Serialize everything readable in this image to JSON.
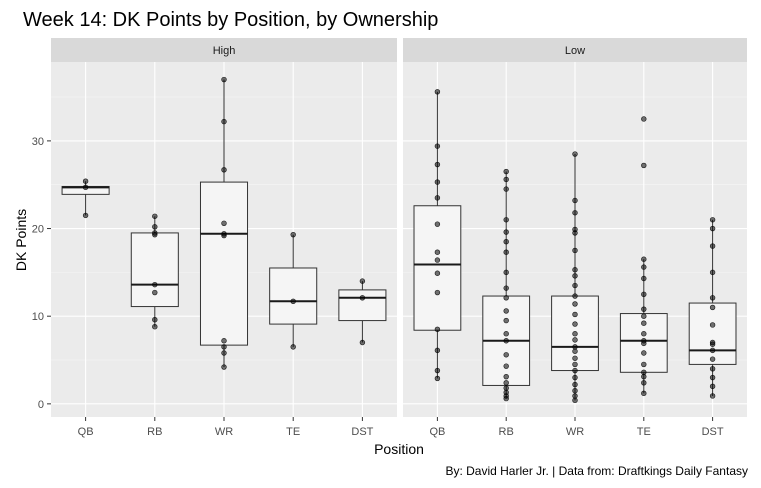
{
  "chart_data": {
    "type": "box",
    "title": "Week 14: DK Points by Position, by Ownership",
    "xlabel": "Position",
    "ylabel": "DK Points",
    "caption": "By: David Harler Jr. | Data from: Draftkings Daily Fantasy",
    "categories": [
      "QB",
      "RB",
      "WR",
      "TE",
      "DST"
    ],
    "ylim": [
      -1.5,
      39
    ],
    "yticks": [
      0,
      10,
      20,
      30
    ],
    "grid": true,
    "panels": [
      {
        "name": "High",
        "boxes": [
          {
            "category": "QB",
            "min": 21.5,
            "q1": 23.9,
            "median": 24.7,
            "q3": 24.8,
            "max": 25.4,
            "points": [
              21.5,
              24.7,
              25.4
            ]
          },
          {
            "category": "RB",
            "min": 8.8,
            "q1": 11.1,
            "median": 13.6,
            "q3": 19.5,
            "max": 21.4,
            "points": [
              8.8,
              9.6,
              12.7,
              13.6,
              19.3,
              19.5,
              20.2,
              21.4
            ]
          },
          {
            "category": "WR",
            "min": 4.2,
            "q1": 6.7,
            "median": 19.4,
            "q3": 25.3,
            "max": 37.0,
            "points": [
              4.2,
              5.8,
              6.5,
              7.2,
              19.2,
              19.4,
              20.6,
              26.7,
              32.2,
              37.0
            ]
          },
          {
            "category": "TE",
            "min": 6.5,
            "q1": 9.1,
            "median": 11.7,
            "q3": 15.5,
            "max": 19.3,
            "points": [
              6.5,
              11.7,
              19.3
            ]
          },
          {
            "category": "DST",
            "min": 7.0,
            "q1": 9.5,
            "median": 12.1,
            "q3": 13.0,
            "max": 14.0,
            "points": [
              7.0,
              12.1,
              14.0
            ]
          }
        ]
      },
      {
        "name": "Low",
        "boxes": [
          {
            "category": "QB",
            "min": 2.9,
            "q1": 8.4,
            "median": 15.9,
            "q3": 22.6,
            "max": 35.6,
            "points": [
              2.9,
              3.8,
              6.1,
              8.5,
              12.7,
              14.9,
              16.4,
              17.3,
              20.5,
              23.5,
              25.3,
              27.3,
              29.4,
              35.6
            ]
          },
          {
            "category": "RB",
            "min": 0.6,
            "q1": 2.1,
            "median": 7.2,
            "q3": 12.3,
            "max": 26.5,
            "points": [
              0.6,
              0.9,
              1.3,
              1.8,
              2.4,
              3.1,
              4.3,
              5.6,
              7.2,
              8.0,
              9.5,
              10.6,
              12.1,
              13.2,
              15.0,
              17.3,
              18.5,
              19.6,
              21.0,
              24.5,
              25.6,
              26.5
            ]
          },
          {
            "category": "WR",
            "min": 0.4,
            "q1": 3.8,
            "median": 6.5,
            "q3": 12.3,
            "max": 28.5,
            "points": [
              0.4,
              0.9,
              1.5,
              2.2,
              3.0,
              3.8,
              4.5,
              5.2,
              6.0,
              6.5,
              7.3,
              8.0,
              9.1,
              10.2,
              11.4,
              12.3,
              13.5,
              14.6,
              15.3,
              17.5,
              19.5,
              19.9,
              21.8,
              23.2,
              28.5
            ]
          },
          {
            "category": "TE",
            "min": 1.2,
            "q1": 3.6,
            "median": 7.2,
            "q3": 10.3,
            "max": 16.5,
            "points": [
              1.2,
              2.4,
              3.1,
              3.6,
              4.5,
              5.8,
              6.9,
              7.2,
              8.0,
              9.2,
              10.0,
              10.8,
              12.5,
              14.3,
              15.6,
              16.5,
              27.2,
              32.5
            ]
          },
          {
            "category": "DST",
            "min": 0.9,
            "q1": 4.5,
            "median": 6.1,
            "q3": 11.5,
            "max": 21.0,
            "points": [
              0.9,
              2.0,
              3.0,
              4.0,
              5.1,
              6.1,
              6.8,
              7.0,
              9.0,
              11.0,
              12.1,
              15.0,
              18.0,
              20.0,
              21.0
            ]
          }
        ]
      }
    ]
  }
}
